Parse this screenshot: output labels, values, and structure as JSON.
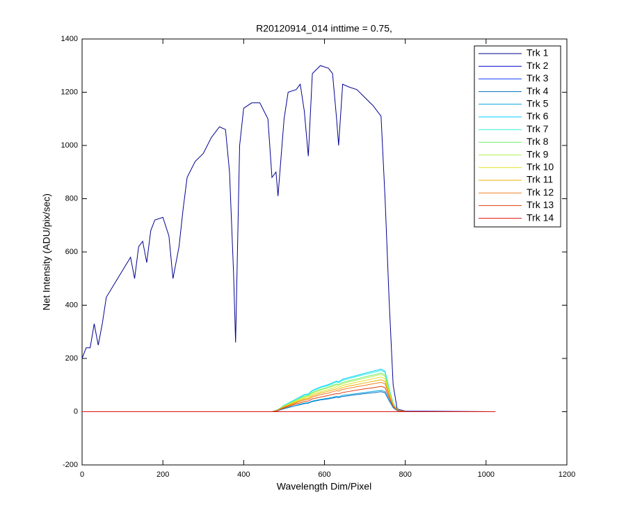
{
  "chart_data": {
    "type": "line",
    "title": "R20120914_014 inttime = 0.75,",
    "x_label": "Wavelength Dim/Pixel",
    "y_label": "Net Intensity (ADU/pix/sec)",
    "xlim": [
      0,
      1200
    ],
    "xticks": [
      0,
      200,
      400,
      600,
      800,
      1000,
      1200
    ],
    "ylim": [
      -200,
      1400
    ],
    "yticks": [
      -200,
      0,
      200,
      400,
      600,
      800,
      1000,
      1200,
      1400
    ],
    "grid": false,
    "legend": "upper right",
    "x": [
      0,
      10,
      20,
      30,
      40,
      50,
      60,
      80,
      100,
      120,
      130,
      140,
      150,
      160,
      170,
      180,
      200,
      215,
      225,
      240,
      250,
      260,
      280,
      300,
      320,
      340,
      355,
      365,
      375,
      380,
      390,
      400,
      420,
      440,
      460,
      470,
      480,
      485,
      500,
      510,
      530,
      540,
      550,
      560,
      570,
      590,
      610,
      620,
      630,
      635,
      645,
      660,
      680,
      700,
      720,
      740,
      750,
      760,
      770,
      780,
      800,
      1023
    ],
    "series": [
      {
        "name": "Trk 1",
        "color": "#00008f",
        "values": [
          200,
          240,
          240,
          330,
          250,
          330,
          430,
          480,
          530,
          580,
          500,
          620,
          640,
          560,
          680,
          720,
          730,
          660,
          500,
          620,
          760,
          880,
          940,
          970,
          1030,
          1070,
          1060,
          900,
          520,
          260,
          1000,
          1140,
          1160,
          1160,
          1100,
          880,
          900,
          810,
          1100,
          1200,
          1210,
          1230,
          1130,
          960,
          1270,
          1300,
          1290,
          1270,
          1100,
          1000,
          1230,
          1220,
          1210,
          1180,
          1150,
          1110,
          800,
          420,
          100,
          10,
          2,
          0
        ]
      },
      {
        "name": "Trk 2",
        "color": "#0000d0",
        "values": [
          0,
          0,
          0,
          0,
          0,
          0,
          0,
          0,
          0,
          0,
          0,
          0,
          0,
          0,
          0,
          0,
          0,
          0,
          0,
          0,
          0,
          0,
          0,
          0,
          0,
          0,
          0,
          0,
          0,
          0,
          0,
          0,
          0,
          0,
          0,
          0,
          0,
          0,
          0,
          0,
          0,
          0,
          0,
          0,
          0,
          0,
          0,
          0,
          0,
          0,
          0,
          0,
          0,
          0,
          0,
          0,
          0,
          0,
          0,
          0,
          0,
          0
        ]
      },
      {
        "name": "Trk 3",
        "color": "#1040ff",
        "values": [
          0,
          0,
          0,
          0,
          0,
          0,
          0,
          0,
          0,
          0,
          0,
          0,
          0,
          0,
          0,
          0,
          0,
          0,
          0,
          0,
          0,
          0,
          0,
          0,
          0,
          0,
          0,
          0,
          0,
          0,
          0,
          0,
          0,
          0,
          0,
          0,
          0,
          0,
          0,
          0,
          0,
          0,
          0,
          0,
          0,
          0,
          0,
          0,
          0,
          0,
          0,
          0,
          0,
          0,
          0,
          0,
          0,
          0,
          0,
          0,
          0,
          0
        ]
      },
      {
        "name": "Trk 4",
        "color": "#0070c0",
        "values": [
          0,
          0,
          0,
          0,
          0,
          0,
          0,
          0,
          0,
          0,
          0,
          0,
          0,
          0,
          0,
          0,
          0,
          0,
          0,
          0,
          0,
          0,
          0,
          0,
          0,
          0,
          0,
          0,
          0,
          0,
          0,
          0,
          0,
          0,
          0,
          0,
          2,
          4,
          11,
          15,
          23,
          26,
          30,
          32,
          38,
          44,
          48,
          51,
          54,
          53,
          57,
          60,
          64,
          68,
          71,
          75,
          71,
          41,
          15,
          4,
          0,
          0
        ]
      },
      {
        "name": "Trk 5",
        "color": "#00a0e0",
        "values": [
          0,
          0,
          0,
          0,
          0,
          0,
          0,
          0,
          0,
          0,
          0,
          0,
          0,
          0,
          0,
          0,
          0,
          0,
          0,
          0,
          0,
          0,
          0,
          0,
          0,
          0,
          0,
          0,
          0,
          0,
          0,
          0,
          0,
          0,
          0,
          0,
          2,
          4,
          12,
          16,
          24,
          28,
          32,
          34,
          40,
          46,
          51,
          54,
          58,
          56,
          61,
          64,
          68,
          72,
          76,
          80,
          76,
          44,
          16,
          4,
          0,
          0
        ]
      },
      {
        "name": "Trk 6",
        "color": "#00d0ff",
        "values": [
          0,
          0,
          0,
          0,
          0,
          0,
          0,
          0,
          0,
          0,
          0,
          0,
          0,
          0,
          0,
          0,
          0,
          0,
          0,
          0,
          0,
          0,
          0,
          0,
          0,
          0,
          0,
          0,
          0,
          0,
          0,
          0,
          0,
          0,
          0,
          0,
          5,
          8,
          24,
          32,
          48,
          56,
          64,
          67,
          80,
          93,
          102,
          109,
          115,
          112,
          122,
          128,
          136,
          144,
          152,
          160,
          152,
          88,
          32,
          8,
          0,
          0
        ]
      },
      {
        "name": "Trk 7",
        "color": "#30f0e0",
        "values": [
          0,
          0,
          0,
          0,
          0,
          0,
          0,
          0,
          0,
          0,
          0,
          0,
          0,
          0,
          0,
          0,
          0,
          0,
          0,
          0,
          0,
          0,
          0,
          0,
          0,
          0,
          0,
          0,
          0,
          0,
          0,
          0,
          0,
          0,
          0,
          0,
          5,
          8,
          23,
          31,
          47,
          54,
          62,
          65,
          78,
          90,
          99,
          105,
          112,
          109,
          118,
          124,
          132,
          140,
          147,
          155,
          147,
          85,
          31,
          8,
          0,
          0
        ]
      },
      {
        "name": "Trk 8",
        "color": "#70f070",
        "values": [
          0,
          0,
          0,
          0,
          0,
          0,
          0,
          0,
          0,
          0,
          0,
          0,
          0,
          0,
          0,
          0,
          0,
          0,
          0,
          0,
          0,
          0,
          0,
          0,
          0,
          0,
          0,
          0,
          0,
          0,
          0,
          0,
          0,
          0,
          0,
          0,
          4,
          7,
          22,
          29,
          44,
          51,
          58,
          61,
          73,
          84,
          93,
          99,
          104,
          102,
          110,
          116,
          123,
          131,
          138,
          145,
          138,
          80,
          29,
          7,
          0,
          0
        ]
      },
      {
        "name": "Trk 9",
        "color": "#b0f050",
        "values": [
          0,
          0,
          0,
          0,
          0,
          0,
          0,
          0,
          0,
          0,
          0,
          0,
          0,
          0,
          0,
          0,
          0,
          0,
          0,
          0,
          0,
          0,
          0,
          0,
          0,
          0,
          0,
          0,
          0,
          0,
          0,
          0,
          0,
          0,
          0,
          0,
          4,
          7,
          21,
          28,
          42,
          49,
          56,
          59,
          70,
          81,
          90,
          95,
          101,
          98,
          106,
          112,
          119,
          126,
          133,
          140,
          133,
          77,
          28,
          7,
          0,
          0
        ]
      },
      {
        "name": "Trk 10",
        "color": "#e0e020",
        "values": [
          0,
          0,
          0,
          0,
          0,
          0,
          0,
          0,
          0,
          0,
          0,
          0,
          0,
          0,
          0,
          0,
          0,
          0,
          0,
          0,
          0,
          0,
          0,
          0,
          0,
          0,
          0,
          0,
          0,
          0,
          0,
          0,
          0,
          0,
          0,
          0,
          4,
          7,
          20,
          26,
          39,
          46,
          52,
          55,
          65,
          75,
          83,
          88,
          94,
          91,
          99,
          104,
          111,
          117,
          124,
          130,
          124,
          72,
          26,
          7,
          0,
          0
        ]
      },
      {
        "name": "Trk 11",
        "color": "#f0b000",
        "values": [
          0,
          0,
          0,
          0,
          0,
          0,
          0,
          0,
          0,
          0,
          0,
          0,
          0,
          0,
          0,
          0,
          0,
          0,
          0,
          0,
          0,
          0,
          0,
          0,
          0,
          0,
          0,
          0,
          0,
          0,
          0,
          0,
          0,
          0,
          0,
          0,
          4,
          6,
          18,
          24,
          36,
          42,
          48,
          50,
          60,
          70,
          77,
          82,
          86,
          84,
          91,
          96,
          102,
          108,
          114,
          120,
          114,
          66,
          24,
          6,
          0,
          0
        ]
      },
      {
        "name": "Trk 12",
        "color": "#f08020",
        "values": [
          0,
          0,
          0,
          0,
          0,
          0,
          0,
          0,
          0,
          0,
          0,
          0,
          0,
          0,
          0,
          0,
          0,
          0,
          0,
          0,
          0,
          0,
          0,
          0,
          0,
          0,
          0,
          0,
          0,
          0,
          0,
          0,
          0,
          0,
          0,
          0,
          3,
          6,
          17,
          22,
          33,
          39,
          44,
          46,
          55,
          64,
          70,
          75,
          79,
          77,
          84,
          88,
          94,
          99,
          105,
          110,
          105,
          61,
          22,
          6,
          0,
          0
        ]
      },
      {
        "name": "Trk 13",
        "color": "#e04010",
        "values": [
          0,
          0,
          0,
          0,
          0,
          0,
          0,
          0,
          0,
          0,
          0,
          0,
          0,
          0,
          0,
          0,
          0,
          0,
          0,
          0,
          0,
          0,
          0,
          0,
          0,
          0,
          0,
          0,
          0,
          0,
          0,
          0,
          0,
          0,
          0,
          0,
          3,
          5,
          14,
          19,
          29,
          33,
          38,
          40,
          48,
          55,
          61,
          65,
          68,
          67,
          72,
          76,
          81,
          86,
          90,
          95,
          90,
          52,
          19,
          5,
          0,
          0
        ]
      },
      {
        "name": "Trk 14",
        "color": "#e01010",
        "values": [
          0,
          0,
          0,
          0,
          0,
          0,
          0,
          0,
          0,
          0,
          0,
          0,
          0,
          0,
          0,
          0,
          0,
          0,
          0,
          0,
          0,
          0,
          0,
          0,
          0,
          0,
          0,
          0,
          0,
          0,
          0,
          0,
          0,
          0,
          0,
          0,
          0,
          0,
          0,
          0,
          0,
          0,
          0,
          0,
          0,
          0,
          0,
          0,
          0,
          0,
          0,
          0,
          0,
          0,
          0,
          0,
          0,
          0,
          0,
          0,
          0,
          0
        ]
      }
    ]
  }
}
